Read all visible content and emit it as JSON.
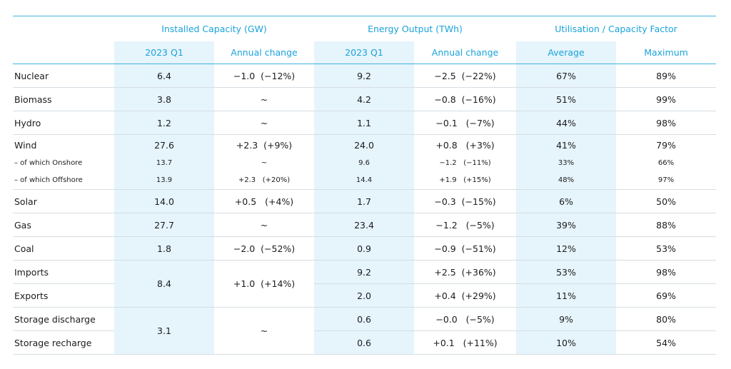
{
  "header": {
    "groups": [
      "Installed Capacity (GW)",
      "Energy Output (TWh)",
      "Utilisation / Capacity Factor"
    ],
    "subheaders": [
      "2023 Q1",
      "Annual change",
      "2023 Q1",
      "Annual change",
      "Average",
      "Maximum"
    ]
  },
  "rows": {
    "nuclear": {
      "label": "Nuclear",
      "cap": "6.4",
      "cap_chg": "−1.0  (−12%)",
      "out": "9.2",
      "out_chg": "−2.5  (−22%)",
      "avg": "67%",
      "max": "89%"
    },
    "biomass": {
      "label": "Biomass",
      "cap": "3.8",
      "cap_chg": "~",
      "out": "4.2",
      "out_chg": "−0.8  (−16%)",
      "avg": "51%",
      "max": "99%"
    },
    "hydro": {
      "label": "Hydro",
      "cap": "1.2",
      "cap_chg": "~",
      "out": "1.1",
      "out_chg": "−0.1   (−7%)",
      "avg": "44%",
      "max": "98%"
    },
    "wind": {
      "label": "Wind",
      "cap": "27.6",
      "cap_chg": "+2.3  (+9%)",
      "out": "24.0",
      "out_chg": "+0.8   (+3%)",
      "avg": "41%",
      "max": "79%"
    },
    "onshore": {
      "label": "– of which Onshore",
      "cap": "13.7",
      "cap_chg": "~",
      "out": "9.6",
      "out_chg": "−1.2   (−11%)",
      "avg": "33%",
      "max": "66%"
    },
    "offshore": {
      "label": "– of which Offshore",
      "cap": "13.9",
      "cap_chg": "+2.3   (+20%)",
      "out": "14.4",
      "out_chg": "+1.9   (+15%)",
      "avg": "48%",
      "max": "97%"
    },
    "solar": {
      "label": "Solar",
      "cap": "14.0",
      "cap_chg": "+0.5   (+4%)",
      "out": "1.7",
      "out_chg": "−0.3  (−15%)",
      "avg": "6%",
      "max": "50%"
    },
    "gas": {
      "label": "Gas",
      "cap": "27.7",
      "cap_chg": "~",
      "out": "23.4",
      "out_chg": "−1.2   (−5%)",
      "avg": "39%",
      "max": "88%"
    },
    "coal": {
      "label": "Coal",
      "cap": "1.8",
      "cap_chg": "−2.0  (−52%)",
      "out": "0.9",
      "out_chg": "−0.9  (−51%)",
      "avg": "12%",
      "max": "53%"
    },
    "imports": {
      "label": "Imports",
      "out": "9.2",
      "out_chg": "+2.5  (+36%)",
      "avg": "53%",
      "max": "98%"
    },
    "exports": {
      "label": "Exports",
      "out": "2.0",
      "out_chg": "+0.4  (+29%)",
      "avg": "11%",
      "max": "69%"
    },
    "interconnect": {
      "cap": "8.4",
      "cap_chg": "+1.0  (+14%)"
    },
    "storage_dis": {
      "label": "Storage discharge",
      "out": "0.6",
      "out_chg": "−0.0   (−5%)",
      "avg": "9%",
      "max": "80%"
    },
    "storage_rec": {
      "label": "Storage recharge",
      "out": "0.6",
      "out_chg": "+0.1   (+11%)",
      "avg": "10%",
      "max": "54%"
    },
    "storage": {
      "cap": "3.1",
      "cap_chg": "~"
    }
  },
  "colors": {
    "accent": "#1aa3d9",
    "shade": "#e6f4fc",
    "rule": "#d6dde2"
  }
}
